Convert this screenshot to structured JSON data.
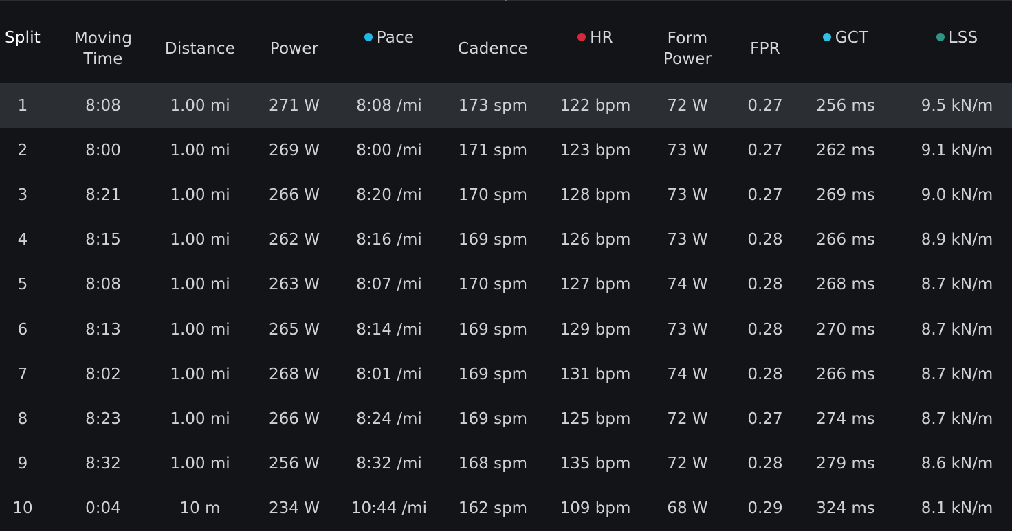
{
  "colors": {
    "background": "#121417",
    "highlight_row": "#2b2e33",
    "pace_dot": "#25b6e8",
    "hr_dot": "#d6283a",
    "gct_dot": "#2fc2e6",
    "lss_dot": "#2e9488"
  },
  "header": {
    "split": "Split",
    "moving_time_line1": "Moving",
    "moving_time_line2": "Time",
    "distance": "Distance",
    "power": "Power",
    "pace": "Pace",
    "cadence": "Cadence",
    "hr": "HR",
    "form_power_line1": "Form",
    "form_power_line2": "Power",
    "fpr": "FPR",
    "gct": "GCT",
    "lss": "LSS"
  },
  "rows": [
    {
      "split": "1",
      "moving_time": "8:08",
      "distance": "1.00 mi",
      "power": "271 W",
      "pace": "8:08 /mi",
      "cadence": "173 spm",
      "hr": "122 bpm",
      "form_power": "72 W",
      "fpr": "0.27",
      "gct": "256 ms",
      "lss": "9.5 kN/m"
    },
    {
      "split": "2",
      "moving_time": "8:00",
      "distance": "1.00 mi",
      "power": "269 W",
      "pace": "8:00 /mi",
      "cadence": "171 spm",
      "hr": "123 bpm",
      "form_power": "73 W",
      "fpr": "0.27",
      "gct": "262 ms",
      "lss": "9.1 kN/m"
    },
    {
      "split": "3",
      "moving_time": "8:21",
      "distance": "1.00 mi",
      "power": "266 W",
      "pace": "8:20 /mi",
      "cadence": "170 spm",
      "hr": "128 bpm",
      "form_power": "73 W",
      "fpr": "0.27",
      "gct": "269 ms",
      "lss": "9.0 kN/m"
    },
    {
      "split": "4",
      "moving_time": "8:15",
      "distance": "1.00 mi",
      "power": "262 W",
      "pace": "8:16 /mi",
      "cadence": "169 spm",
      "hr": "126 bpm",
      "form_power": "73 W",
      "fpr": "0.28",
      "gct": "266 ms",
      "lss": "8.9 kN/m"
    },
    {
      "split": "5",
      "moving_time": "8:08",
      "distance": "1.00 mi",
      "power": "263 W",
      "pace": "8:07 /mi",
      "cadence": "170 spm",
      "hr": "127 bpm",
      "form_power": "74 W",
      "fpr": "0.28",
      "gct": "268 ms",
      "lss": "8.7 kN/m"
    },
    {
      "split": "6",
      "moving_time": "8:13",
      "distance": "1.00 mi",
      "power": "265 W",
      "pace": "8:14 /mi",
      "cadence": "169 spm",
      "hr": "129 bpm",
      "form_power": "73 W",
      "fpr": "0.28",
      "gct": "270 ms",
      "lss": "8.7 kN/m"
    },
    {
      "split": "7",
      "moving_time": "8:02",
      "distance": "1.00 mi",
      "power": "268 W",
      "pace": "8:01 /mi",
      "cadence": "169 spm",
      "hr": "131 bpm",
      "form_power": "74 W",
      "fpr": "0.28",
      "gct": "266 ms",
      "lss": "8.7 kN/m"
    },
    {
      "split": "8",
      "moving_time": "8:23",
      "distance": "1.00 mi",
      "power": "266 W",
      "pace": "8:24 /mi",
      "cadence": "169 spm",
      "hr": "125 bpm",
      "form_power": "72 W",
      "fpr": "0.27",
      "gct": "274 ms",
      "lss": "8.7 kN/m"
    },
    {
      "split": "9",
      "moving_time": "8:32",
      "distance": "1.00 mi",
      "power": "256 W",
      "pace": "8:32 /mi",
      "cadence": "168 spm",
      "hr": "135 bpm",
      "form_power": "72 W",
      "fpr": "0.28",
      "gct": "279 ms",
      "lss": "8.6 kN/m"
    },
    {
      "split": "10",
      "moving_time": "0:04",
      "distance": "10 m",
      "power": "234 W",
      "pace": "10:44 /mi",
      "cadence": "162 spm",
      "hr": "109 bpm",
      "form_power": "68 W",
      "fpr": "0.29",
      "gct": "324 ms",
      "lss": "8.1 kN/m"
    }
  ]
}
